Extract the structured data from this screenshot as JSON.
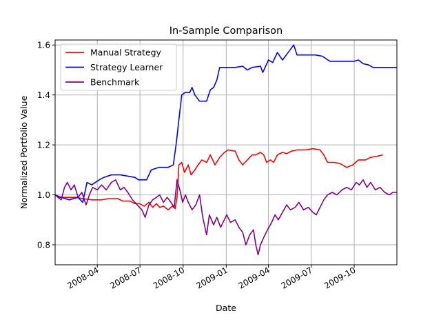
{
  "chart_data": {
    "type": "line",
    "title": "In-Sample Comparison",
    "xlabel": "Date",
    "ylabel": "Normalized Portfolio Value",
    "x_range": [
      "2008-01-02",
      "2009-12-31"
    ],
    "ylim": [
      0.72,
      1.62
    ],
    "x_ticks": [
      "2008-04",
      "2008-07",
      "2008-10",
      "2009-01",
      "2009-04",
      "2009-07",
      "2009-10"
    ],
    "y_ticks": [
      "0.8",
      "1.0",
      "1.2",
      "1.4",
      "1.6"
    ],
    "grid": true,
    "legend_position": "upper-left",
    "series": [
      {
        "name": "Manual Strategy",
        "color": "#ff0000",
        "points": [
          [
            "2008-01-02",
            1.0
          ],
          [
            "2008-01-10",
            0.99
          ],
          [
            "2008-01-25",
            0.99
          ],
          [
            "2008-02-15",
            0.99
          ],
          [
            "2008-03-01",
            0.985
          ],
          [
            "2008-03-20",
            0.98
          ],
          [
            "2008-04-10",
            0.98
          ],
          [
            "2008-04-25",
            0.985
          ],
          [
            "2008-05-15",
            0.985
          ],
          [
            "2008-05-25",
            0.975
          ],
          [
            "2008-06-10",
            0.975
          ],
          [
            "2008-06-20",
            0.965
          ],
          [
            "2008-06-30",
            0.965
          ],
          [
            "2008-07-10",
            0.955
          ],
          [
            "2008-07-20",
            0.97
          ],
          [
            "2008-07-28",
            0.95
          ],
          [
            "2008-08-05",
            0.965
          ],
          [
            "2008-08-12",
            0.95
          ],
          [
            "2008-08-20",
            0.955
          ],
          [
            "2008-08-30",
            0.94
          ],
          [
            "2008-09-08",
            0.955
          ],
          [
            "2008-09-14",
            0.945
          ],
          [
            "2008-09-18",
            0.99
          ],
          [
            "2008-09-22",
            1.12
          ],
          [
            "2008-09-28",
            1.13
          ],
          [
            "2008-10-04",
            1.09
          ],
          [
            "2008-10-12",
            1.12
          ],
          [
            "2008-10-18",
            1.08
          ],
          [
            "2008-10-26",
            1.1
          ],
          [
            "2008-11-02",
            1.12
          ],
          [
            "2008-11-10",
            1.14
          ],
          [
            "2008-11-20",
            1.13
          ],
          [
            "2008-11-28",
            1.16
          ],
          [
            "2008-12-08",
            1.12
          ],
          [
            "2008-12-18",
            1.15
          ],
          [
            "2008-12-28",
            1.17
          ],
          [
            "2009-01-05",
            1.18
          ],
          [
            "2009-01-20",
            1.175
          ],
          [
            "2009-01-28",
            1.14
          ],
          [
            "2009-02-05",
            1.12
          ],
          [
            "2009-02-15",
            1.14
          ],
          [
            "2009-02-25",
            1.16
          ],
          [
            "2009-03-05",
            1.16
          ],
          [
            "2009-03-15",
            1.17
          ],
          [
            "2009-03-22",
            1.16
          ],
          [
            "2009-03-28",
            1.13
          ],
          [
            "2009-04-05",
            1.14
          ],
          [
            "2009-04-12",
            1.13
          ],
          [
            "2009-04-20",
            1.16
          ],
          [
            "2009-05-01",
            1.17
          ],
          [
            "2009-05-10",
            1.165
          ],
          [
            "2009-05-20",
            1.175
          ],
          [
            "2009-06-01",
            1.18
          ],
          [
            "2009-06-20",
            1.18
          ],
          [
            "2009-07-05",
            1.185
          ],
          [
            "2009-07-20",
            1.18
          ],
          [
            "2009-07-28",
            1.16
          ],
          [
            "2009-08-05",
            1.13
          ],
          [
            "2009-08-20",
            1.13
          ],
          [
            "2009-09-01",
            1.125
          ],
          [
            "2009-09-15",
            1.11
          ],
          [
            "2009-09-28",
            1.12
          ],
          [
            "2009-10-10",
            1.14
          ],
          [
            "2009-10-25",
            1.14
          ],
          [
            "2009-11-05",
            1.15
          ],
          [
            "2009-11-20",
            1.155
          ],
          [
            "2009-12-01",
            1.16
          ]
        ]
      },
      {
        "name": "Strategy Learner",
        "color": "#0000ff",
        "points": [
          [
            "2008-01-02",
            1.0
          ],
          [
            "2008-01-15",
            0.99
          ],
          [
            "2008-02-01",
            0.98
          ],
          [
            "2008-02-20",
            0.99
          ],
          [
            "2008-03-01",
            0.97
          ],
          [
            "2008-03-10",
            1.05
          ],
          [
            "2008-03-20",
            1.04
          ],
          [
            "2008-04-05",
            1.06
          ],
          [
            "2008-04-15",
            1.07
          ],
          [
            "2008-05-01",
            1.08
          ],
          [
            "2008-05-20",
            1.08
          ],
          [
            "2008-06-05",
            1.075
          ],
          [
            "2008-06-20",
            1.07
          ],
          [
            "2008-06-28",
            1.06
          ],
          [
            "2008-07-15",
            1.06
          ],
          [
            "2008-07-25",
            1.1
          ],
          [
            "2008-08-10",
            1.11
          ],
          [
            "2008-08-30",
            1.11
          ],
          [
            "2008-09-10",
            1.12
          ],
          [
            "2008-09-16",
            1.2
          ],
          [
            "2008-09-22",
            1.3
          ],
          [
            "2008-09-28",
            1.4
          ],
          [
            "2008-10-05",
            1.41
          ],
          [
            "2008-10-15",
            1.41
          ],
          [
            "2008-10-20",
            1.43
          ],
          [
            "2008-10-26",
            1.4
          ],
          [
            "2008-11-05",
            1.375
          ],
          [
            "2008-11-20",
            1.375
          ],
          [
            "2008-11-28",
            1.42
          ],
          [
            "2008-12-05",
            1.43
          ],
          [
            "2008-12-12",
            1.46
          ],
          [
            "2008-12-18",
            1.51
          ],
          [
            "2009-01-05",
            1.51
          ],
          [
            "2009-01-20",
            1.51
          ],
          [
            "2009-02-05",
            1.515
          ],
          [
            "2009-02-15",
            1.5
          ],
          [
            "2009-02-25",
            1.51
          ],
          [
            "2009-03-15",
            1.515
          ],
          [
            "2009-03-20",
            1.49
          ],
          [
            "2009-04-01",
            1.54
          ],
          [
            "2009-04-10",
            1.53
          ],
          [
            "2009-04-20",
            1.57
          ],
          [
            "2009-05-01",
            1.54
          ],
          [
            "2009-05-15",
            1.575
          ],
          [
            "2009-05-25",
            1.6
          ],
          [
            "2009-06-01",
            1.56
          ],
          [
            "2009-06-20",
            1.56
          ],
          [
            "2009-07-10",
            1.56
          ],
          [
            "2009-07-25",
            1.555
          ],
          [
            "2009-08-10",
            1.535
          ],
          [
            "2009-08-25",
            1.535
          ],
          [
            "2009-09-15",
            1.535
          ],
          [
            "2009-10-01",
            1.535
          ],
          [
            "2009-10-10",
            1.54
          ],
          [
            "2009-10-20",
            1.525
          ],
          [
            "2009-11-01",
            1.52
          ],
          [
            "2009-11-10",
            1.51
          ],
          [
            "2009-12-01",
            1.51
          ],
          [
            "2009-12-31",
            1.51
          ]
        ]
      },
      {
        "name": "Benchmark",
        "color": "#800080",
        "points": [
          [
            "2008-01-02",
            1.0
          ],
          [
            "2008-01-08",
            0.99
          ],
          [
            "2008-01-15",
            0.98
          ],
          [
            "2008-01-22",
            1.03
          ],
          [
            "2008-01-28",
            1.05
          ],
          [
            "2008-02-05",
            1.02
          ],
          [
            "2008-02-12",
            1.04
          ],
          [
            "2008-02-20",
            0.99
          ],
          [
            "2008-02-28",
            1.01
          ],
          [
            "2008-03-08",
            0.96
          ],
          [
            "2008-03-15",
            1.0
          ],
          [
            "2008-03-22",
            1.03
          ],
          [
            "2008-04-01",
            1.02
          ],
          [
            "2008-04-10",
            1.04
          ],
          [
            "2008-04-20",
            1.02
          ],
          [
            "2008-05-01",
            1.05
          ],
          [
            "2008-05-10",
            1.06
          ],
          [
            "2008-05-20",
            1.02
          ],
          [
            "2008-05-28",
            1.03
          ],
          [
            "2008-06-05",
            1.01
          ],
          [
            "2008-06-15",
            0.98
          ],
          [
            "2008-06-25",
            0.96
          ],
          [
            "2008-07-05",
            0.94
          ],
          [
            "2008-07-12",
            0.91
          ],
          [
            "2008-07-20",
            0.96
          ],
          [
            "2008-07-28",
            0.98
          ],
          [
            "2008-08-05",
            0.99
          ],
          [
            "2008-08-12",
            1.0
          ],
          [
            "2008-08-20",
            0.97
          ],
          [
            "2008-08-28",
            0.99
          ],
          [
            "2008-09-05",
            0.97
          ],
          [
            "2008-09-12",
            0.95
          ],
          [
            "2008-09-18",
            1.06
          ],
          [
            "2008-09-24",
            1.02
          ],
          [
            "2008-09-30",
            0.97
          ],
          [
            "2008-10-06",
            1.0
          ],
          [
            "2008-10-12",
            0.97
          ],
          [
            "2008-10-20",
            0.94
          ],
          [
            "2008-10-28",
            0.96
          ],
          [
            "2008-11-05",
            1.0
          ],
          [
            "2008-11-12",
            0.91
          ],
          [
            "2008-11-20",
            0.84
          ],
          [
            "2008-11-26",
            0.92
          ],
          [
            "2008-12-05",
            0.88
          ],
          [
            "2008-12-12",
            0.91
          ],
          [
            "2008-12-20",
            0.87
          ],
          [
            "2009-01-02",
            0.92
          ],
          [
            "2009-01-10",
            0.89
          ],
          [
            "2009-01-20",
            0.9
          ],
          [
            "2009-01-28",
            0.87
          ],
          [
            "2009-02-05",
            0.85
          ],
          [
            "2009-02-12",
            0.8
          ],
          [
            "2009-02-20",
            0.84
          ],
          [
            "2009-02-28",
            0.86
          ],
          [
            "2009-03-05",
            0.8
          ],
          [
            "2009-03-10",
            0.76
          ],
          [
            "2009-03-15",
            0.8
          ],
          [
            "2009-03-22",
            0.83
          ],
          [
            "2009-03-30",
            0.86
          ],
          [
            "2009-04-08",
            0.89
          ],
          [
            "2009-04-15",
            0.92
          ],
          [
            "2009-04-22",
            0.9
          ],
          [
            "2009-05-01",
            0.93
          ],
          [
            "2009-05-10",
            0.96
          ],
          [
            "2009-05-18",
            0.94
          ],
          [
            "2009-05-28",
            0.95
          ],
          [
            "2009-06-05",
            0.97
          ],
          [
            "2009-06-15",
            0.94
          ],
          [
            "2009-06-25",
            0.95
          ],
          [
            "2009-07-05",
            0.93
          ],
          [
            "2009-07-12",
            0.92
          ],
          [
            "2009-07-20",
            0.95
          ],
          [
            "2009-07-28",
            0.98
          ],
          [
            "2009-08-05",
            1.0
          ],
          [
            "2009-08-15",
            1.01
          ],
          [
            "2009-08-25",
            1.0
          ],
          [
            "2009-09-05",
            1.02
          ],
          [
            "2009-09-15",
            1.03
          ],
          [
            "2009-09-25",
            1.02
          ],
          [
            "2009-10-05",
            1.05
          ],
          [
            "2009-10-12",
            1.04
          ],
          [
            "2009-10-20",
            1.06
          ],
          [
            "2009-10-28",
            1.03
          ],
          [
            "2009-11-05",
            1.05
          ],
          [
            "2009-11-15",
            1.02
          ],
          [
            "2009-11-25",
            1.03
          ],
          [
            "2009-12-05",
            1.01
          ],
          [
            "2009-12-15",
            1.0
          ],
          [
            "2009-12-22",
            1.01
          ],
          [
            "2009-12-31",
            1.01
          ]
        ]
      }
    ]
  }
}
